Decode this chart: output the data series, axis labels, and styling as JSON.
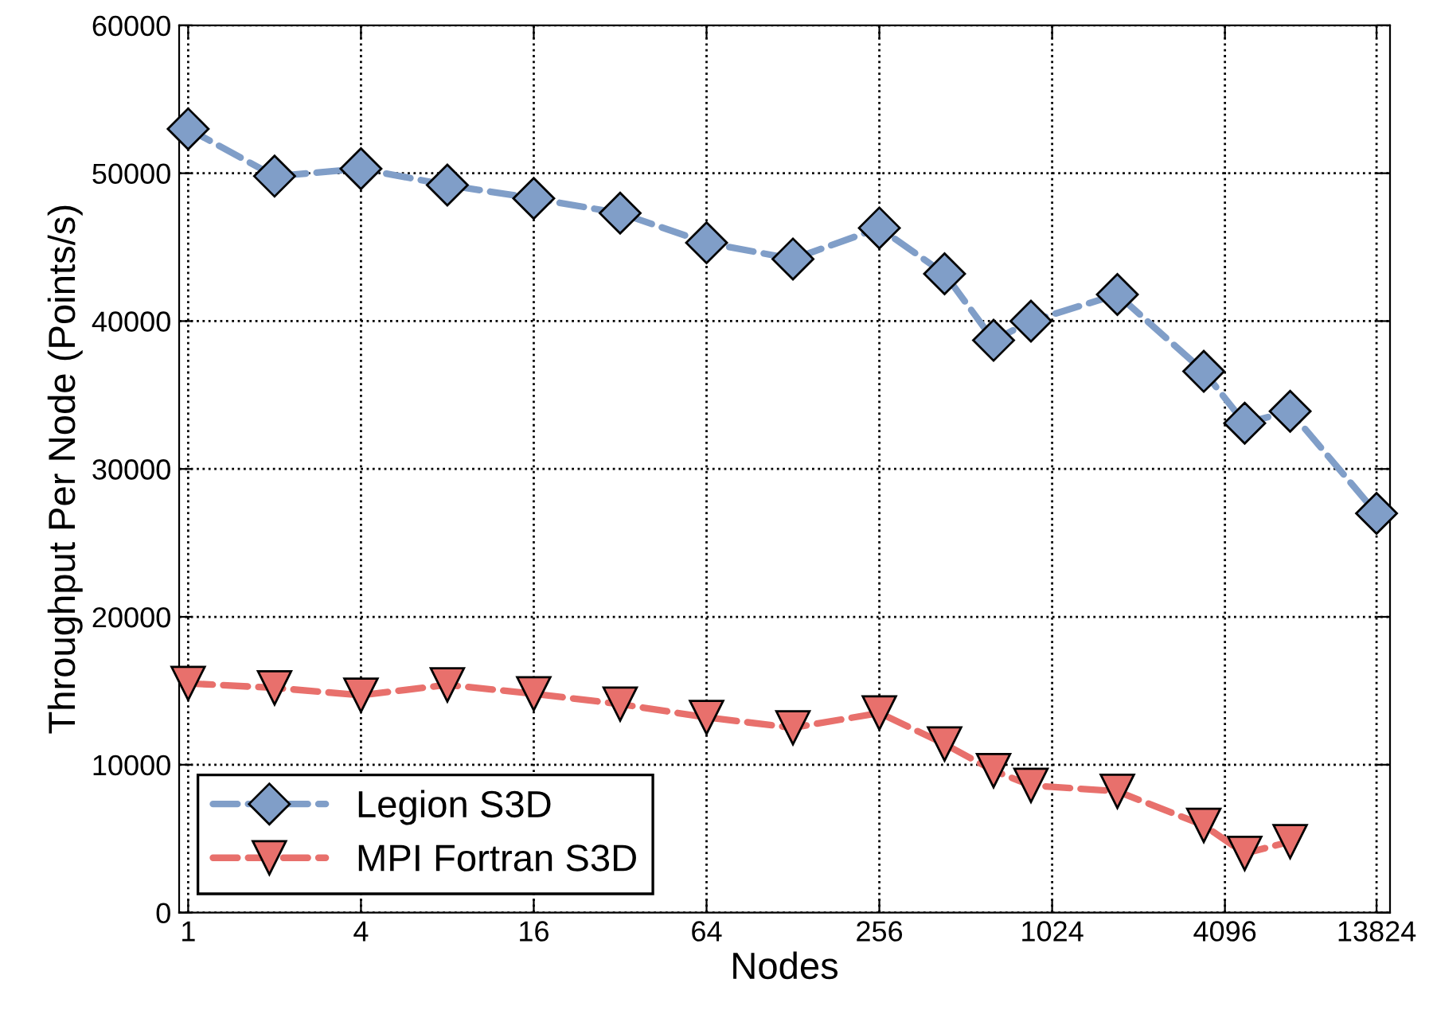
{
  "chart_data": {
    "type": "line",
    "xlabel": "Nodes",
    "ylabel": "Throughput Per Node (Points/s)",
    "x": [
      1,
      2,
      4,
      8,
      16,
      32,
      64,
      128,
      256,
      432,
      640,
      864,
      1728,
      3456,
      4800,
      6912,
      13824
    ],
    "series": [
      {
        "name": "Legion S3D",
        "color": "#809ec8",
        "marker": "diamond",
        "values": [
          53000,
          49800,
          50300,
          49200,
          48300,
          47300,
          45300,
          44200,
          46300,
          43200,
          38700,
          40000,
          41800,
          36600,
          33100,
          33900,
          27000
        ]
      },
      {
        "name": "MPI Fortran S3D",
        "color": "#e8706c",
        "marker": "triangle",
        "values": [
          15500,
          15200,
          14700,
          15400,
          14800,
          14100,
          13200,
          12500,
          13500,
          11400,
          9600,
          8600,
          8200,
          5900,
          4000,
          4800,
          null
        ]
      }
    ],
    "log": "x",
    "xlim": [
      0.93,
      15400
    ],
    "xticks": [
      1,
      4,
      16,
      64,
      256,
      1024,
      4096,
      13824
    ],
    "ylim": [
      0,
      60000
    ],
    "yticks": [
      0,
      10000,
      20000,
      30000,
      40000,
      50000,
      60000
    ],
    "grid": true,
    "legend": "bottom left",
    "line_style": "dashed"
  }
}
